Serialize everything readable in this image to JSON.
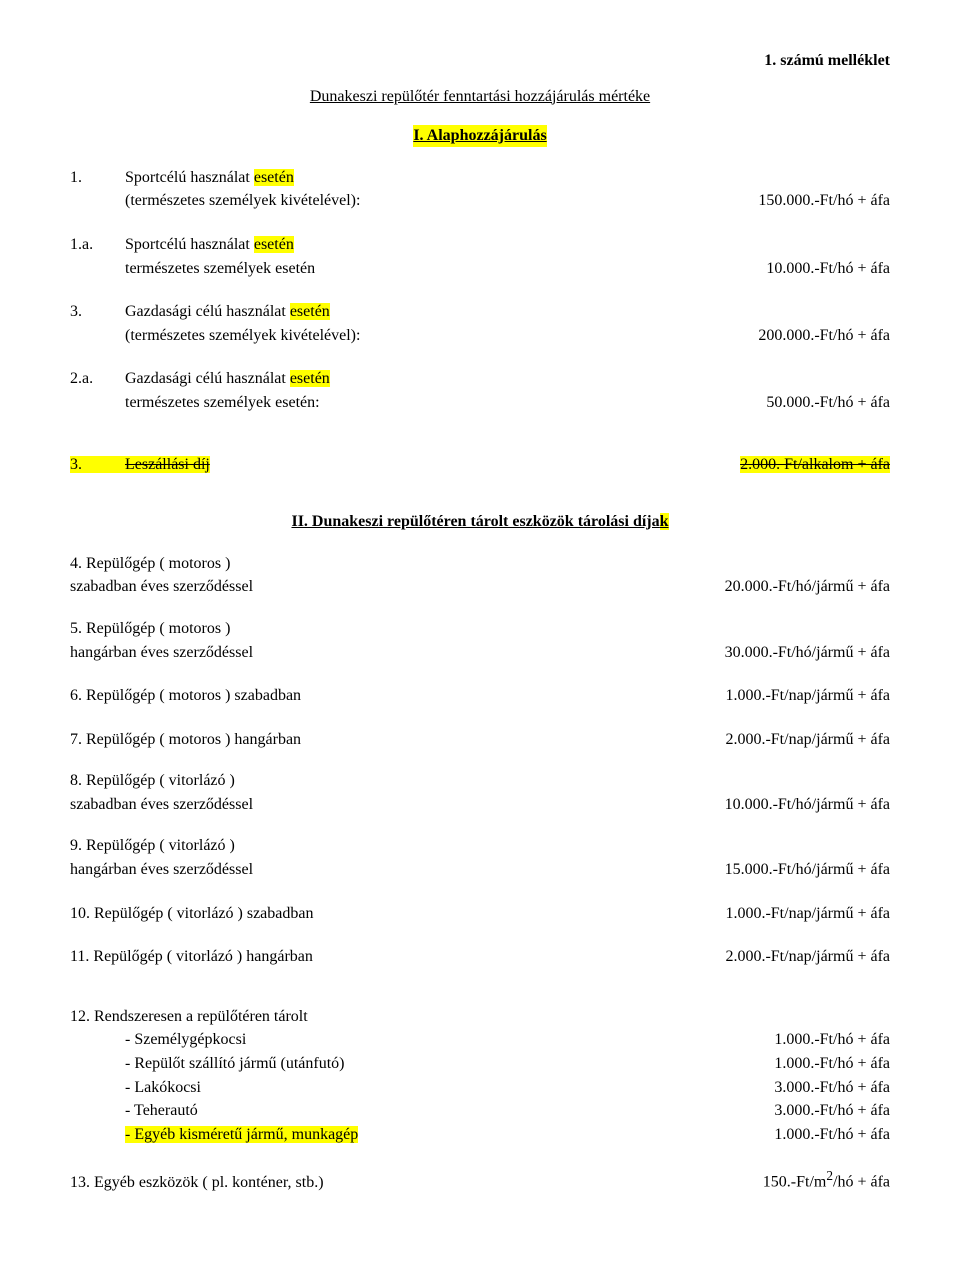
{
  "header_right": "1. számú melléklet",
  "title": "Dunakeszi repülőtér fenntartási hozzájárulás mértéke",
  "roman1": "I. Alaphozzájárulás",
  "items1": [
    {
      "num": "1.",
      "label_a": "Sportcélú használat ",
      "label_hl": "esetén",
      "label_b": "(természetes személyek kivételével):",
      "price": "150.000.-Ft/hó + áfa"
    },
    {
      "num": "1.a.",
      "label_a": "Sportcélú használat ",
      "label_hl": "esetén",
      "label_b": "természetes személyek esetén",
      "price": "10.000.-Ft/hó + áfa"
    },
    {
      "num": "3.",
      "label_a": "Gazdasági célú használat ",
      "label_hl": "esetén",
      "label_b": "(természetes személyek kivételével):",
      "price": "200.000.-Ft/hó + áfa"
    },
    {
      "num": "2.a.",
      "label_a": "Gazdasági célú használat ",
      "label_hl": "esetén",
      "label_b": "természetes személyek esetén:",
      "price": "50.000.-Ft/hó + áfa"
    }
  ],
  "strike_row": {
    "num": "3.",
    "label": "Leszállási díj",
    "price": "2.000. Ft/alkalom + áfa"
  },
  "roman2_a": "II. Dunakeszi repülőtéren tárolt eszközök tárolási díja",
  "roman2_b": "k",
  "items2": [
    {
      "num": "4.",
      "l1": "Repülőgép ( motoros )",
      "l2": "szabadban éves szerződéssel",
      "price": "20.000.-Ft/hó/jármű + áfa"
    },
    {
      "num": "5.",
      "l1": "Repülőgép ( motoros )",
      "l2": "hangárban éves szerződéssel",
      "price": "30.000.-Ft/hó/jármű + áfa"
    },
    {
      "num": "6.",
      "l1": "Repülőgép ( motoros ) szabadban",
      "l2": "",
      "price": "1.000.-Ft/nap/jármű + áfa"
    },
    {
      "num": "7.",
      "l1": "Repülőgép ( motoros ) hangárban",
      "l2": "",
      "price": "2.000.-Ft/nap/jármű + áfa"
    },
    {
      "num": "8.",
      "l1": "Repülőgép ( vitorlázó )",
      "l2": "szabadban éves szerződéssel",
      "price": "10.000.-Ft/hó/jármű + áfa"
    },
    {
      "num": "9.",
      "l1": "Repülőgép ( vitorlázó )",
      "l2": "hangárban éves szerződéssel",
      "price": "15.000.-Ft/hó/jármű + áfa"
    },
    {
      "num": "10.",
      "l1": " Repülőgép ( vitorlázó ) szabadban",
      "l2": "",
      "price": "1.000.-Ft/nap/jármű + áfa"
    },
    {
      "num": "11.",
      "l1": "Repülőgép ( vitorlázó ) hangárban",
      "l2": "",
      "price": "2.000.-Ft/nap/jármű + áfa"
    }
  ],
  "item12": {
    "num": "12.",
    "label": "Rendszeresen a repülőtéren tárolt",
    "subs": [
      {
        "label": "- Személygépkocsi",
        "price": "1.000.-Ft/hó + áfa",
        "hl": false
      },
      {
        "label": "- Repülőt szállító jármű (utánfutó)",
        "price": "1.000.-Ft/hó + áfa",
        "hl": false
      },
      {
        "label": "- Lakókocsi",
        "price": "3.000.-Ft/hó + áfa",
        "hl": false
      },
      {
        "label": "- Teherautó",
        "price": "3.000.-Ft/hó + áfa",
        "hl": false
      },
      {
        "label": "- Egyéb kisméretű jármű, munkagép",
        "price": "1.000.-Ft/hó + áfa",
        "hl": true
      }
    ]
  },
  "item13": {
    "num": "13.",
    "label": "Egyéb eszközök ( pl. konténer, stb.)",
    "price_a": "150.-Ft/m",
    "price_sup": "2",
    "price_b": "/hó + áfa"
  }
}
